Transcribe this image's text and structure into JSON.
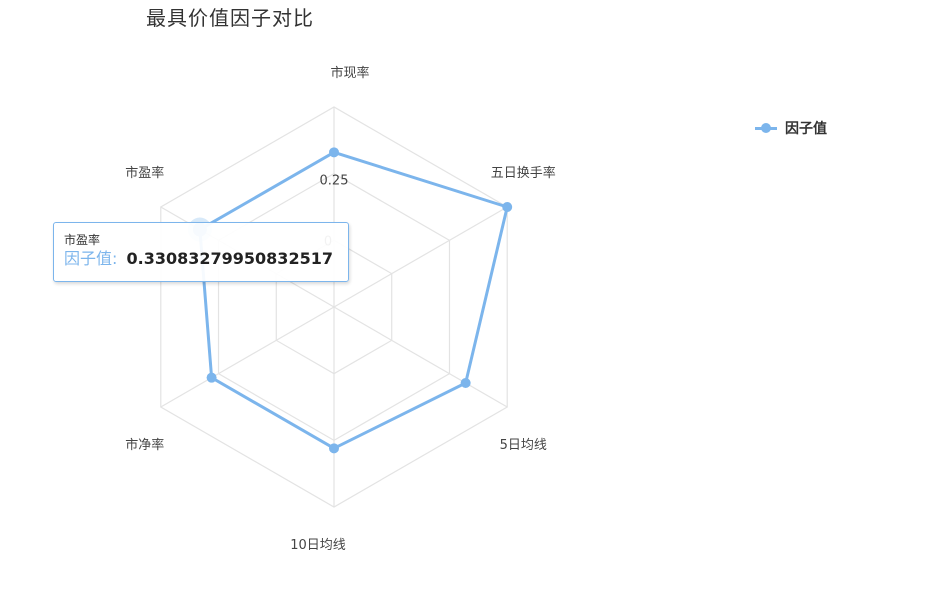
{
  "title": "最具价值因子对比",
  "colors": {
    "series": "#7cb5ec",
    "grid": "#e3e3e3"
  },
  "chart_data": {
    "type": "radar",
    "title": "最具价值因子对比",
    "categories": [
      "五日换手率",
      "5日均线",
      "10日均线",
      "市净率",
      "市盈率",
      "市现率"
    ],
    "series": [
      {
        "name": "因子值",
        "values": [
          0.5,
          0.32,
          0.28,
          0.28,
          0.33083279950832517,
          0.33
        ]
      }
    ],
    "radial_range": [
      -0.25,
      0.5
    ],
    "radial_ticks": [
      {
        "value": 0,
        "label": "0"
      },
      {
        "value": 0.25,
        "label": "0.25"
      }
    ],
    "grid": true,
    "legend_position": "top-right"
  },
  "legend": {
    "label": "因子值"
  },
  "tooltip": {
    "category": "市盈率",
    "series_label": "因子值:",
    "value": "0.33083279950832517"
  }
}
